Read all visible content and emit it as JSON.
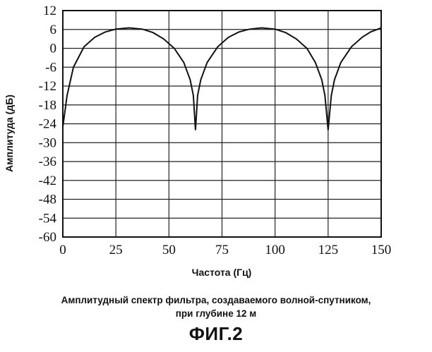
{
  "chart_data": {
    "type": "line",
    "title": "",
    "xlabel": "Частота (Гц)",
    "ylabel": "Амплитуда (дБ)",
    "xlim": [
      0,
      150
    ],
    "ylim": [
      -60,
      12
    ],
    "x_ticks": [
      0,
      25,
      50,
      75,
      100,
      125,
      150
    ],
    "y_ticks": [
      12,
      6,
      0,
      -6,
      -12,
      -18,
      -24,
      -30,
      -36,
      -42,
      -48,
      -54,
      -60
    ],
    "grid": true,
    "series": [
      {
        "name": "amplitude spectrum",
        "x": [
          0,
          2,
          5,
          10,
          15,
          20,
          25,
          31.25,
          37.5,
          42.5,
          47.5,
          52.5,
          57,
          60,
          61.5,
          62.5,
          63.5,
          65,
          68,
          73,
          78,
          83,
          88,
          93.75,
          100,
          105,
          110,
          115,
          119,
          122,
          123.5,
          125,
          126.5,
          128,
          131,
          136,
          141,
          145,
          150
        ],
        "y": [
          -25,
          -15,
          -6,
          0.5,
          3.5,
          5.2,
          6.1,
          6.5,
          6.1,
          5.0,
          3.0,
          0,
          -4.5,
          -10,
          -15,
          -26,
          -15,
          -10,
          -4.5,
          0.5,
          3.5,
          5.2,
          6.1,
          6.5,
          6.1,
          5.0,
          3.0,
          0,
          -4.5,
          -10,
          -15,
          -26,
          -15,
          -10,
          -4.5,
          0.5,
          3.5,
          5.2,
          6.5
        ]
      }
    ]
  },
  "caption": {
    "line1": "Амплитудный спектр фильтра, создаваемого волной-спутником,",
    "line2": "при глубине 12 м"
  },
  "figure_label": "ФИГ.2"
}
